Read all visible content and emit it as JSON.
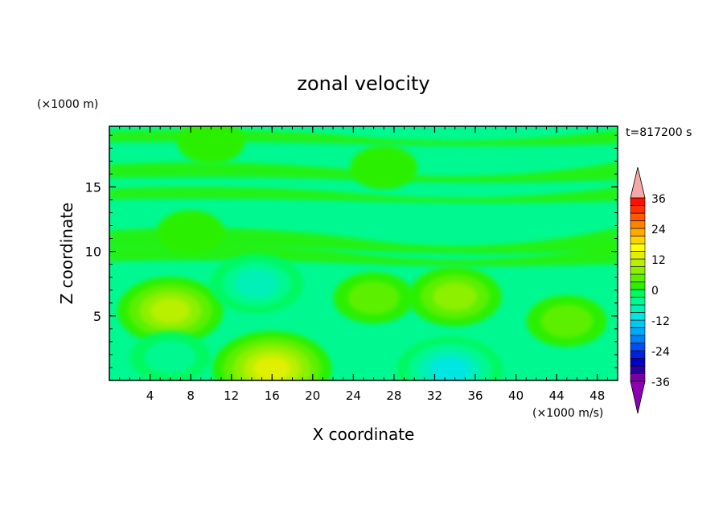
{
  "chart_data": {
    "type": "heatmap",
    "title": "zonal velocity",
    "xlabel": "X coordinate",
    "ylabel": "Z coordinate",
    "x_scale_label": "(×1000 m/s)",
    "y_scale_label": "(×1000 m)",
    "time_label": "t=817200 s",
    "xlim": [
      0,
      50
    ],
    "ylim": [
      0,
      19.7
    ],
    "x_ticks": [
      4,
      8,
      12,
      16,
      20,
      24,
      28,
      32,
      36,
      40,
      44,
      48
    ],
    "y_ticks": [
      5,
      10,
      15
    ],
    "colorbar": {
      "levels": [
        -36,
        -33,
        -30,
        -27,
        -24,
        -21,
        -18,
        -15,
        -12,
        -9,
        -6,
        -3,
        0,
        3,
        6,
        9,
        12,
        15,
        18,
        21,
        24,
        27,
        30,
        33,
        36
      ],
      "tick_labels": [
        36,
        24,
        12,
        0,
        -12,
        -24,
        -36
      ],
      "colors": [
        "#7a00a0",
        "#2a00a0",
        "#0000c8",
        "#0020e0",
        "#0050f0",
        "#0080f8",
        "#00a8f8",
        "#00c8f0",
        "#00e6e0",
        "#00f0b8",
        "#00f890",
        "#00f860",
        "#2cf000",
        "#5cf000",
        "#8cf000",
        "#b8f000",
        "#e0f000",
        "#ffff00",
        "#ffd200",
        "#ffaa00",
        "#ff8200",
        "#ff5a00",
        "#ff3200",
        "#ff1000"
      ],
      "under_color": "#8c00b4",
      "over_color": "#f4a8a8"
    },
    "field_regions": [
      {
        "x": 6,
        "z": 5.4,
        "value": 9
      },
      {
        "x": 16,
        "z": 0.9,
        "value": 14
      },
      {
        "x": 34,
        "z": 6.5,
        "value": 7
      },
      {
        "x": 45,
        "z": 4.6,
        "value": 5
      },
      {
        "x": 26,
        "z": 6.4,
        "value": 4
      },
      {
        "x": 14.5,
        "z": 7.5,
        "value": -9
      },
      {
        "x": 33.5,
        "z": 0.8,
        "value": -12
      },
      {
        "x": 6,
        "z": 1.8,
        "value": -6
      },
      {
        "x": 27,
        "z": 16.5,
        "value": 1
      },
      {
        "x": 8,
        "z": 11.5,
        "value": 1
      },
      {
        "x": 10,
        "z": 18.5,
        "value": 1
      }
    ]
  }
}
